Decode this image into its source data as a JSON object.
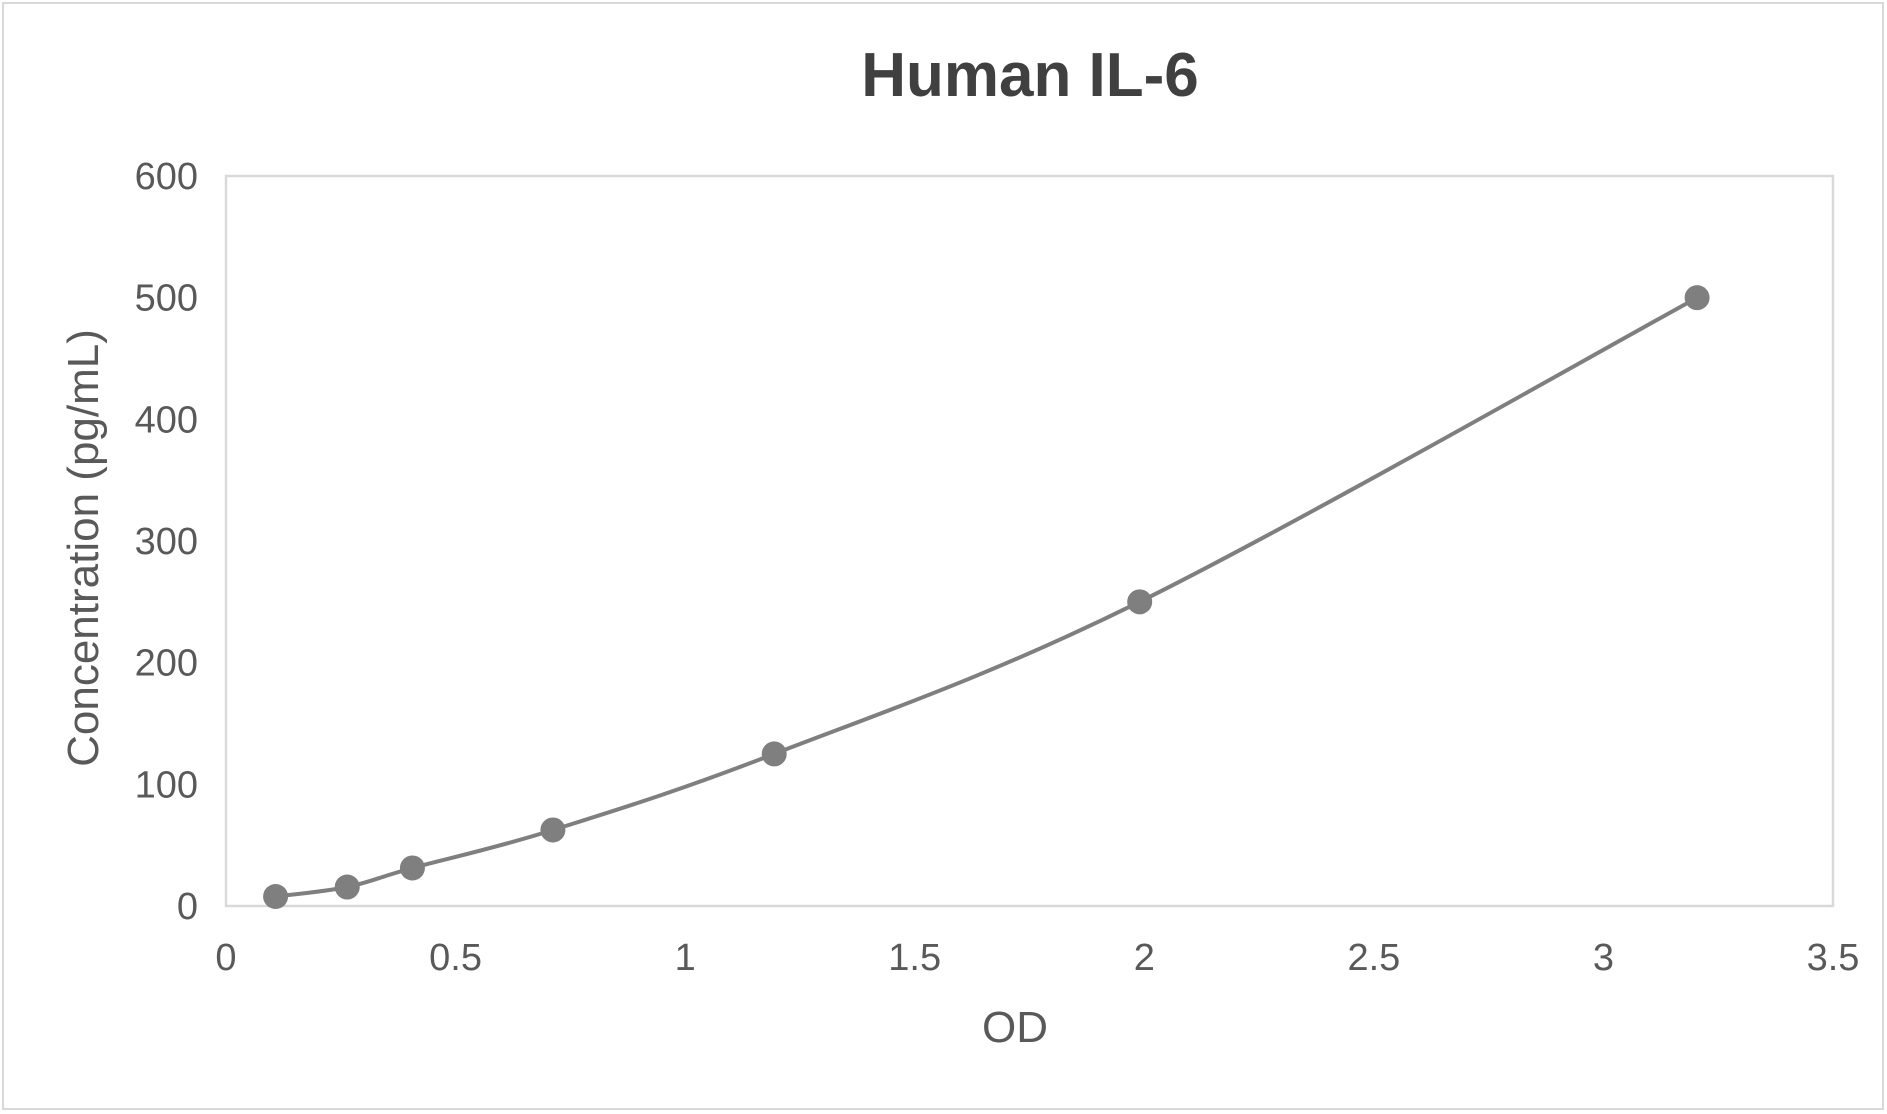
{
  "chart_data": {
    "type": "scatter",
    "subtype": "scatter-with-smooth-lines-and-markers",
    "title": "Human IL-6",
    "xlabel": "OD",
    "ylabel": "Concentration (pg/mL)",
    "xlim": [
      0,
      3.5
    ],
    "ylim": [
      0,
      600
    ],
    "x_ticks": [
      0,
      0.5,
      1,
      1.5,
      2,
      2.5,
      3,
      3.5
    ],
    "x_tick_labels": [
      "0",
      "0.5",
      "1",
      "1.5",
      "2",
      "2.5",
      "3",
      "3.5"
    ],
    "y_ticks": [
      0,
      100,
      200,
      300,
      400,
      500,
      600
    ],
    "y_tick_labels": [
      "0",
      "100",
      "200",
      "300",
      "400",
      "500",
      "600"
    ],
    "grid": false,
    "legend": null,
    "series": [
      {
        "name": "Human IL-6",
        "color": "#7f7f7f",
        "x": [
          0.108,
          0.264,
          0.406,
          0.712,
          1.194,
          1.99,
          3.204
        ],
        "y": [
          7.8,
          15.6,
          31.25,
          62.5,
          125,
          250,
          500
        ]
      }
    ]
  },
  "colors": {
    "title": "#404040",
    "text": "#595959",
    "plot_border": "#d9d9d9",
    "series": "#7f7f7f"
  }
}
